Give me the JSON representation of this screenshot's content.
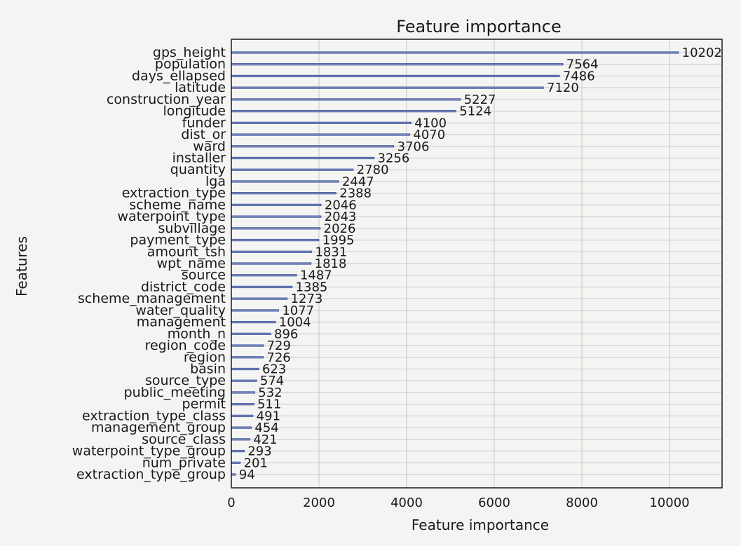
{
  "chart_data": {
    "type": "bar",
    "orientation": "horizontal",
    "title": "Feature importance",
    "xlabel": "Feature importance",
    "ylabel": "Features",
    "xlim": [
      0,
      11200
    ],
    "xticks": [
      0,
      2000,
      4000,
      6000,
      8000,
      10000
    ],
    "grid": true,
    "categories": [
      "gps_height",
      "population",
      "days_ellapsed",
      "latitude",
      "construction_year",
      "longitude",
      "funder",
      "dist_or",
      "ward",
      "installer",
      "quantity",
      "lga",
      "extraction_type",
      "scheme_name",
      "waterpoint_type",
      "subvillage",
      "payment_type",
      "amount_tsh",
      "wpt_name",
      "source",
      "district_code",
      "scheme_management",
      "water_quality",
      "management",
      "month_n",
      "region_code",
      "region",
      "basin",
      "source_type",
      "public_meeting",
      "permit",
      "extraction_type_class",
      "management_group",
      "source_class",
      "waterpoint_type_group",
      "num_private",
      "extraction_type_group"
    ],
    "values": [
      10202,
      7564,
      7486,
      7120,
      5227,
      5124,
      4100,
      4070,
      3706,
      3256,
      2780,
      2447,
      2388,
      2046,
      2043,
      2026,
      1995,
      1831,
      1818,
      1487,
      1385,
      1273,
      1077,
      1004,
      896,
      729,
      726,
      623,
      574,
      532,
      511,
      491,
      454,
      421,
      293,
      201,
      94
    ],
    "value_labels": [
      "10202",
      "7564",
      "7486",
      "7120",
      "5227",
      "5124",
      "4100",
      "4070",
      "3706",
      "3256",
      "2780",
      "2447",
      "2388",
      "2046",
      "2043",
      "2026",
      "1995",
      "1831",
      "1818",
      "1487",
      "1385",
      "1273",
      "1077",
      "1004",
      "896",
      "729",
      "726",
      "623",
      "574",
      "532",
      "511",
      "491",
      "454",
      "421",
      "293",
      "201",
      "94"
    ],
    "colors": {
      "bar": "#4b5fa8",
      "grid": "#c8c8c8",
      "text": "#1a1a1a"
    }
  }
}
